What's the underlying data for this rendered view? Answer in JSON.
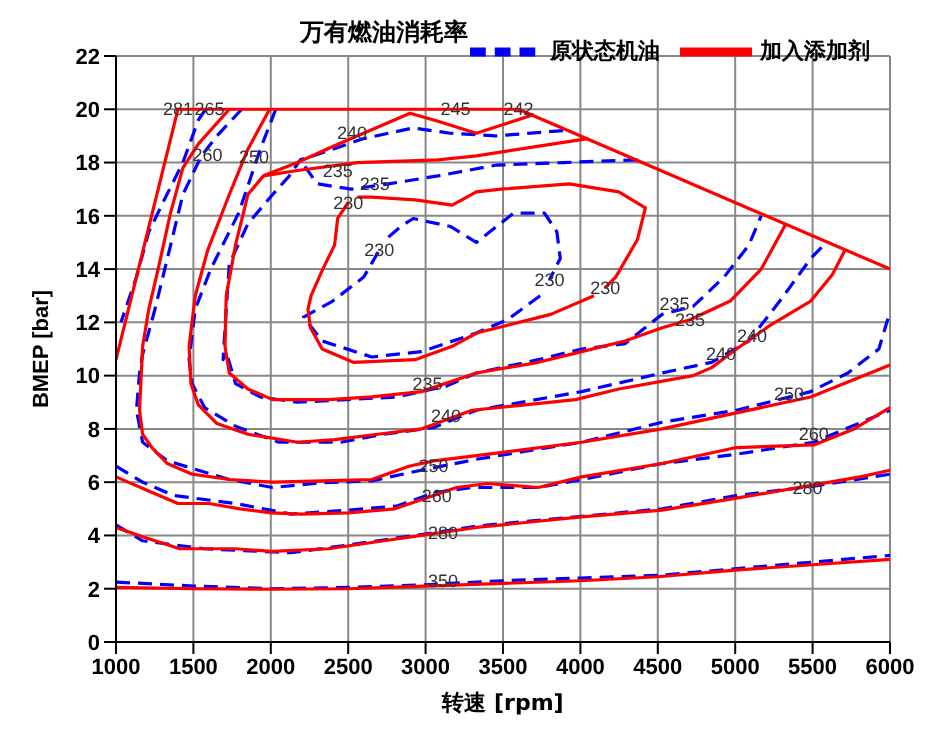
{
  "chart_data": {
    "type": "line",
    "title": "万有燃油消耗率",
    "xlabel": "转速 [rpm]",
    "ylabel": "BMEP [bar]",
    "xlim": [
      1000,
      6000
    ],
    "xticks": [
      1000,
      1500,
      2000,
      2500,
      3000,
      3500,
      4000,
      4500,
      5000,
      5500,
      6000
    ],
    "ylim": [
      0,
      22
    ],
    "yticks": [
      0,
      2,
      4,
      6,
      8,
      10,
      12,
      14,
      16,
      18,
      20,
      22
    ],
    "grid": true,
    "legend": "top right",
    "series": [
      {
        "name": "原状态机油",
        "color": "#0000ff",
        "line_style": "dashed",
        "x": [
          1000,
          1500,
          2000,
          2500,
          3000,
          3500,
          4000,
          4500,
          5000,
          5500,
          6000
        ],
        "values": [
          2.25,
          2.1,
          2.0,
          2.05,
          2.15,
          2.3,
          2.4,
          2.5,
          2.75,
          3.0,
          3.25
        ]
      },
      {
        "color": "#0000ff",
        "line_style": "dashed",
        "x": [
          1000,
          1172,
          1572,
          2132,
          2572,
          3052,
          3328,
          4528,
          5008,
          5508,
          6000
        ],
        "values": [
          4.4,
          3.8,
          3.5,
          3.35,
          3.7,
          4.1,
          4.35,
          5.0,
          5.5,
          5.85,
          6.3
        ]
      },
      {
        "color": "#0000ff",
        "line_style": "dashed",
        "x": [
          1000,
          1172,
          1372,
          1772,
          2132,
          2492,
          2812,
          3052,
          3292,
          3728,
          4008,
          4528,
          5008,
          5508,
          6000
        ],
        "values": [
          6.6,
          6.0,
          5.5,
          5.2,
          4.8,
          4.95,
          5.1,
          5.6,
          5.8,
          5.8,
          6.1,
          6.7,
          7.05,
          7.5,
          8.7
        ]
      },
      {
        "color": "#0000ff",
        "line_style": "dashed",
        "x": [
          1580,
          1532,
          1432,
          1312,
          1212,
          1132,
          1032
        ],
        "values": [
          20,
          19.6,
          18,
          16.6,
          15.4,
          13.7,
          12.0
        ]
      },
      {
        "color": "#0000ff",
        "line_style": "dashed",
        "x": [
          1812,
          1652,
          1552,
          1432,
          1332,
          1252,
          1172,
          1152,
          1132,
          1172,
          1332,
          1732,
          2012,
          2332,
          2652,
          2972,
          3328,
          4008,
          4528,
          5008,
          5488,
          5728,
          5928,
          6000
        ],
        "values": [
          20,
          19,
          18.25,
          16.8,
          14.4,
          12.5,
          10.8,
          10.1,
          8.7,
          7.5,
          6.8,
          6.1,
          5.8,
          5.98,
          6.05,
          6.45,
          6.86,
          7.5,
          8.25,
          8.7,
          9.4,
          10.1,
          11.0,
          12.4
        ]
      },
      {
        "color": "#0000ff",
        "line_style": "dashed",
        "x": [
          2032,
          1932,
          1792,
          1612,
          1512,
          1472,
          1492,
          1572,
          1772,
          2052,
          2452,
          2732,
          3052,
          3328,
          4008,
          4528,
          4848,
          5088,
          5288,
          5488,
          5588
        ],
        "values": [
          20,
          18.5,
          16.1,
          14.0,
          12.5,
          10.6,
          9.7,
          8.8,
          8.1,
          7.5,
          7.5,
          7.8,
          8.05,
          8.7,
          9.4,
          10.1,
          10.5,
          11.3,
          12.8,
          14.4,
          15.0
        ]
      },
      {
        "color": "#0000ff",
        "line_style": "dashed",
        "x": [
          3888,
          3452,
          3160,
          2920,
          2600,
          2300,
          2190,
          2120,
          2012,
          1852,
          1732,
          1712,
          1692,
          1712,
          1772,
          1932,
          2172,
          2492,
          2812,
          3132,
          3328,
          3728,
          4008,
          4288,
          4528,
          4728,
          4928,
          5088,
          5168
        ],
        "values": [
          19.2,
          19.0,
          19.1,
          19.3,
          18.9,
          18.3,
          18.1,
          17.5,
          16.8,
          15.7,
          14.2,
          12.5,
          10.6,
          10.9,
          9.7,
          9.2,
          9.0,
          9.1,
          9.2,
          9.6,
          10.1,
          10.6,
          11.0,
          11.2,
          12.3,
          12.6,
          13.7,
          14.9,
          16.0
        ]
      },
      {
        "color": "#0000ff",
        "line_style": "dashed",
        "x": [
          4368,
          3888,
          3452,
          3080,
          2760,
          2520,
          2300,
          2190
        ],
        "values": [
          18.1,
          18.0,
          17.9,
          17.5,
          17.2,
          17.0,
          17.2,
          18.1
        ]
      },
      {
        "color": "#0000ff",
        "line_style": "dashed",
        "x": [
          2760,
          2840,
          2920,
          3160,
          3328,
          3568,
          3768,
          3848,
          3870,
          3800
        ],
        "values": [
          15.2,
          15.6,
          15.9,
          15.6,
          15.0,
          16.1,
          16.1,
          15.4,
          14.4,
          13.6
        ]
      },
      {
        "color": "#0000ff",
        "line_style": "dashed",
        "x": [
          3740,
          3528,
          3328,
          2972,
          2652,
          2332,
          2212,
          2400,
          2600,
          2700
        ],
        "values": [
          13.0,
          12.1,
          11.6,
          10.9,
          10.7,
          11.3,
          12.2,
          12.8,
          13.7,
          14.7
        ]
      },
      {
        "name": "加入添加剂",
        "color": "#ff0000",
        "line_style": "solid",
        "x": [
          1000,
          1400,
          3600,
          6000
        ],
        "values": [
          10.6,
          20,
          20,
          14
        ]
      },
      {
        "color": "#ff0000",
        "line_style": "solid",
        "x": [
          1000,
          1500,
          2000,
          2500,
          3000,
          3500,
          4000,
          4500,
          5000,
          5500,
          6000
        ],
        "values": [
          2.05,
          2.0,
          1.98,
          2.0,
          2.1,
          2.2,
          2.3,
          2.45,
          2.7,
          2.9,
          3.1
        ]
      },
      {
        "color": "#ff0000",
        "line_style": "solid",
        "x": [
          1000,
          1172,
          1412,
          1772,
          2012,
          2372,
          2732,
          2972,
          3328,
          4008,
          4528,
          5008,
          5508,
          5808,
          6000
        ],
        "values": [
          4.3,
          3.95,
          3.5,
          3.5,
          3.4,
          3.5,
          3.8,
          4.0,
          4.3,
          4.7,
          4.95,
          5.4,
          5.9,
          6.2,
          6.45
        ]
      },
      {
        "color": "#ff0000",
        "line_style": "solid",
        "x": [
          1000,
          1200,
          1400,
          1600,
          1800,
          2000,
          2200,
          2500,
          2800,
          3000,
          3200,
          3400,
          3728,
          4008,
          4528,
          5008,
          5508,
          5768,
          6000
        ],
        "values": [
          6.2,
          5.7,
          5.2,
          5.2,
          5.0,
          4.85,
          4.8,
          4.85,
          5.0,
          5.4,
          5.8,
          5.95,
          5.8,
          6.2,
          6.7,
          7.3,
          7.4,
          8.0,
          8.8
        ]
      },
      {
        "color": "#ff0000",
        "line_style": "solid",
        "x": [
          1732,
          1532,
          1432,
          1352,
          1272,
          1212,
          1172,
          1152,
          1172,
          1232,
          1332,
          1492,
          1732,
          2012,
          2332,
          2652,
          2892,
          3052,
          3328,
          4008,
          4528,
          5008,
          5488,
          6000
        ],
        "values": [
          20,
          18.7,
          17.8,
          16.1,
          14.0,
          12.5,
          11.1,
          8.7,
          7.8,
          7.3,
          6.7,
          6.3,
          6.1,
          6.0,
          6.05,
          6.1,
          6.6,
          6.8,
          7.0,
          7.5,
          8.0,
          8.6,
          9.2,
          10.4
        ]
      },
      {
        "color": "#ff0000",
        "line_style": "solid",
        "x": [
          1992,
          1852,
          1732,
          1592,
          1512,
          1472,
          1484,
          1532,
          1652,
          1852,
          2172,
          2412,
          2692,
          2972,
          3300,
          3968,
          4248,
          4728,
          4848,
          5008,
          5228,
          5488,
          5628,
          5708
        ],
        "values": [
          20,
          18.5,
          16.8,
          14.7,
          13.0,
          11.1,
          9.7,
          8.9,
          8.2,
          7.8,
          7.5,
          7.6,
          7.8,
          8.0,
          8.7,
          9.1,
          9.5,
          10.0,
          10.3,
          11.0,
          11.9,
          12.8,
          13.8,
          14.7
        ]
      },
      {
        "color": "#ff0000",
        "line_style": "solid",
        "x": [
          3700,
          3328,
          3080,
          2900,
          2640,
          2400,
          2172,
          1952,
          1852,
          1772,
          1712,
          1704,
          1732,
          1852,
          2012,
          2372,
          2652,
          2972,
          3328,
          3728,
          4008,
          4288,
          4528,
          4708,
          4968,
          5168,
          5328
        ],
        "values": [
          19.8,
          19.1,
          19.55,
          19.85,
          19.2,
          18.6,
          18.0,
          17.5,
          16.8,
          14.9,
          13.0,
          11.1,
          10.1,
          9.5,
          9.1,
          9.1,
          9.2,
          9.4,
          10.1,
          10.5,
          10.9,
          11.3,
          11.8,
          12.1,
          12.8,
          14.0,
          15.7
        ]
      },
      {
        "color": "#ff0000",
        "line_style": "solid",
        "x": [
          4048,
          3328,
          3080,
          2560,
          2172,
          1952
        ],
        "values": [
          18.9,
          18.25,
          18.1,
          18.0,
          17.7,
          17.5
        ]
      },
      {
        "color": "#ff0000",
        "line_style": "solid",
        "x": [
          2560,
          2652,
          2932,
          3172,
          3328,
          3488,
          3928,
          4248,
          4420,
          4368,
          4228,
          4160
        ],
        "values": [
          16.7,
          16.7,
          16.6,
          16.4,
          16.9,
          17.0,
          17.2,
          16.9,
          16.3,
          15.1,
          13.7,
          13.3
        ]
      },
      {
        "color": "#ff0000",
        "line_style": "solid",
        "x": [
          4088,
          3808,
          3330,
          3172,
          2932,
          2532,
          2332,
          2256,
          2240,
          2260,
          2336,
          2412,
          2432,
          2500
        ],
        "values": [
          13.0,
          12.3,
          11.6,
          11.1,
          10.6,
          10.5,
          11.0,
          11.8,
          12.5,
          13.0,
          14.0,
          14.9,
          15.9,
          16.5
        ]
      }
    ],
    "annotations": [
      {
        "text": "281",
        "x": 1400,
        "y": 20
      },
      {
        "text": "265",
        "x": 1604,
        "y": 20
      },
      {
        "text": "245",
        "x": 3194,
        "y": 20
      },
      {
        "text": "242",
        "x": 3600,
        "y": 20
      },
      {
        "text": "260",
        "x": 1592,
        "y": 18.3
      },
      {
        "text": "250",
        "x": 1892,
        "y": 18.2
      },
      {
        "text": "240",
        "x": 2524,
        "y": 19.1
      },
      {
        "text": "235",
        "x": 2432,
        "y": 17.7
      },
      {
        "text": "235",
        "x": 2672,
        "y": 17.2
      },
      {
        "text": "230",
        "x": 2500,
        "y": 16.5
      },
      {
        "text": "230",
        "x": 2700,
        "y": 14.7
      },
      {
        "text": "230",
        "x": 3800,
        "y": 13.6
      },
      {
        "text": "230",
        "x": 4160,
        "y": 13.3
      },
      {
        "text": "235",
        "x": 4608,
        "y": 12.7
      },
      {
        "text": "235",
        "x": 4708,
        "y": 12.1
      },
      {
        "text": "240",
        "x": 5108,
        "y": 11.5
      },
      {
        "text": "240",
        "x": 4908,
        "y": 10.8
      },
      {
        "text": "235",
        "x": 3012,
        "y": 9.7
      },
      {
        "text": "240",
        "x": 3132,
        "y": 8.5
      },
      {
        "text": "250",
        "x": 3052,
        "y": 6.6
      },
      {
        "text": "260",
        "x": 3072,
        "y": 5.5
      },
      {
        "text": "280",
        "x": 3112,
        "y": 4.1
      },
      {
        "text": "350",
        "x": 3112,
        "y": 2.3
      },
      {
        "text": "250",
        "x": 5348,
        "y": 9.3
      },
      {
        "text": "260",
        "x": 5508,
        "y": 7.8
      },
      {
        "text": "280",
        "x": 5468,
        "y": 5.8
      }
    ]
  }
}
